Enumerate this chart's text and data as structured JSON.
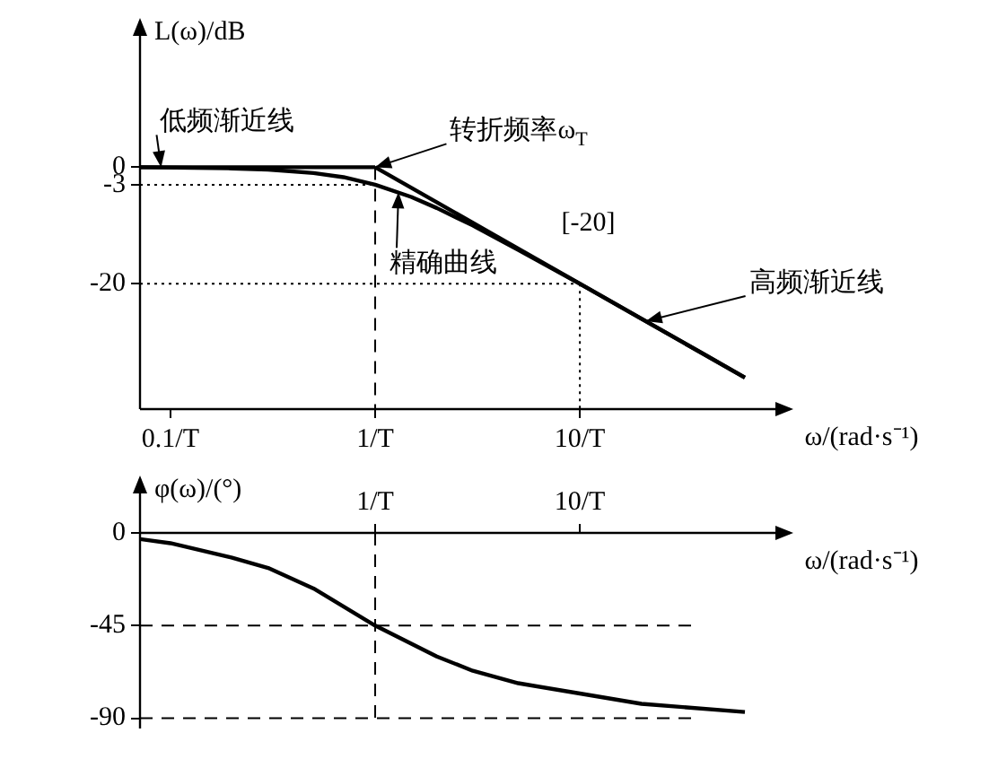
{
  "chart_data": [
    {
      "type": "line",
      "ylabel": "L(ω)/dB",
      "xlabel": "ω/(rad·s⁻¹)",
      "log": "x",
      "grid": false,
      "legend": false,
      "marker": "none",
      "xlim": [
        0.071,
        106
      ],
      "xticks": [
        {
          "value": 0.1,
          "label": "0.1/T"
        },
        {
          "value": 1,
          "label": "1/T"
        },
        {
          "value": 10,
          "label": "10/T"
        }
      ],
      "ylim": [
        -41.5,
        25
      ],
      "yticks": [
        0,
        -3,
        -20
      ],
      "series": [
        {
          "color": "#000000",
          "x": [
            0.071,
            1
          ],
          "values": [
            0,
            0
          ],
          "line_style": "solid"
        },
        {
          "color": "#000000",
          "x": [
            1,
            64
          ],
          "values": [
            0,
            -36.1
          ],
          "line_style": "solid"
        },
        {
          "color": "#000000",
          "x": [
            0.071,
            0.2,
            0.3,
            0.5,
            0.7,
            1,
            1.5,
            2,
            3,
            5,
            10,
            20,
            40,
            64
          ],
          "values": [
            0,
            -0.2,
            -0.4,
            -1,
            -1.7,
            -3,
            -5.1,
            -7,
            -10,
            -14.2,
            -20,
            -26,
            -32,
            -36.1
          ],
          "line_style": "solid"
        },
        {
          "color": "#000000",
          "x": [
            0.071,
            1
          ],
          "values": [
            -3,
            -3
          ],
          "line_style": "dotted"
        },
        {
          "color": "#000000",
          "x": [
            0.071,
            10
          ],
          "values": [
            -20,
            -20
          ],
          "line_style": "dotted"
        },
        {
          "color": "#000000",
          "x": [
            10,
            10
          ],
          "values": [
            -20,
            -41.5
          ],
          "line_style": "dotted"
        },
        {
          "color": "#000000",
          "x": [
            1,
            1
          ],
          "values": [
            0,
            -41.5
          ],
          "line_style": "dashed"
        }
      ],
      "annotations": [
        {
          "text": "低频渐近线",
          "x": 0.09,
          "y": 0
        },
        {
          "text": "转折频率ω$_{T}$",
          "x": 1,
          "y": 0
        },
        {
          "text": "精确曲线",
          "x": 1.3,
          "y": -4.3
        },
        "[-20]",
        {
          "text": "高频渐近线",
          "x": 21,
          "y": -26.4
        }
      ]
    },
    {
      "type": "line",
      "ylabel": "φ(ω)/(°)",
      "xlabel": "ω/(rad·s⁻¹)",
      "log": "x",
      "grid": false,
      "legend": false,
      "marker": "none",
      "xlim": [
        0.071,
        106
      ],
      "xticks": [
        {
          "value": 1,
          "label": "1/T"
        },
        {
          "value": 10,
          "label": "10/T"
        }
      ],
      "ylim": [
        -95,
        0
      ],
      "yticks": [
        0,
        -45,
        -90
      ],
      "series": [
        {
          "color": "#000000",
          "x": [
            0.071,
            0.1,
            0.2,
            0.3,
            0.5,
            1,
            2,
            3,
            5,
            10,
            20,
            64
          ],
          "values": [
            -3,
            -5,
            -12,
            -17,
            -27,
            -45,
            -60,
            -67,
            -73,
            -78,
            -83,
            -87
          ],
          "line_style": "solid"
        },
        {
          "color": "#000000",
          "x": [
            0.071,
            35
          ],
          "values": [
            -45,
            -45
          ],
          "line_style": "dashed"
        },
        {
          "color": "#000000",
          "x": [
            0.071,
            35
          ],
          "values": [
            -90,
            -90
          ],
          "line_style": "dashed"
        },
        {
          "color": "#000000",
          "x": [
            1,
            1
          ],
          "values": [
            0,
            -90
          ],
          "line_style": "dashed"
        }
      ]
    }
  ]
}
